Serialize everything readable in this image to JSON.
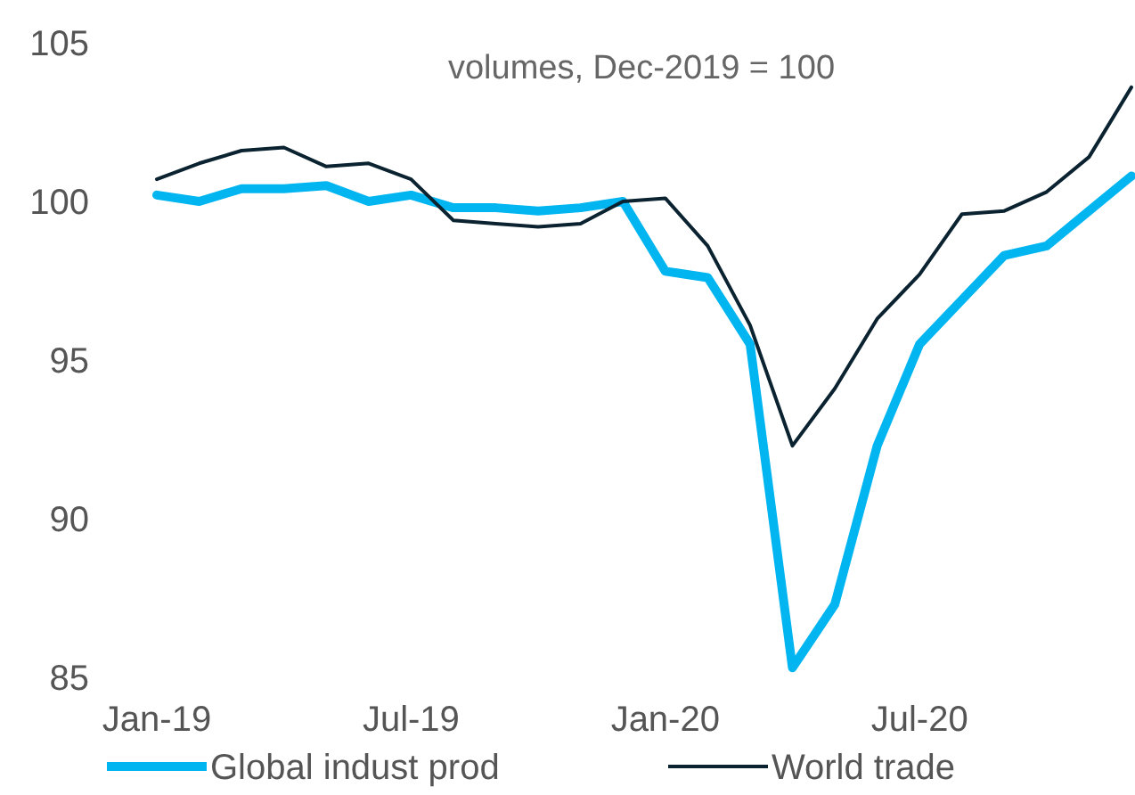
{
  "chart_data": {
    "type": "line",
    "title": "volumes, Dec-2019 = 100",
    "categories": [
      "Jan-19",
      null,
      null,
      null,
      null,
      null,
      "Jul-19",
      null,
      null,
      null,
      null,
      null,
      "Jan-20",
      null,
      null,
      null,
      null,
      null,
      "Jul-20",
      null,
      null,
      null,
      null,
      null
    ],
    "series": [
      {
        "name": "Global indust prod",
        "color": "#00b5f0",
        "values": [
          100.2,
          100.0,
          100.4,
          100.4,
          100.5,
          100.0,
          100.2,
          99.8,
          99.8,
          99.7,
          99.8,
          100.0,
          97.8,
          97.6,
          95.5,
          85.3,
          87.3,
          92.3,
          95.5,
          96.9,
          98.3,
          98.6,
          99.7,
          100.8
        ]
      },
      {
        "name": "World trade",
        "color": "#0b2330",
        "values": [
          100.7,
          101.2,
          101.6,
          101.7,
          101.1,
          101.2,
          100.7,
          99.4,
          99.3,
          99.2,
          99.3,
          100.0,
          100.1,
          98.6,
          96.1,
          92.3,
          94.1,
          96.3,
          97.7,
          99.6,
          99.7,
          100.3,
          101.4,
          103.6
        ]
      }
    ],
    "ylim": [
      85,
      105
    ],
    "yticks": [
      85,
      90,
      95,
      100,
      105
    ],
    "grid": false,
    "legend": "bottom",
    "marker": "none",
    "line_style": "solid"
  }
}
